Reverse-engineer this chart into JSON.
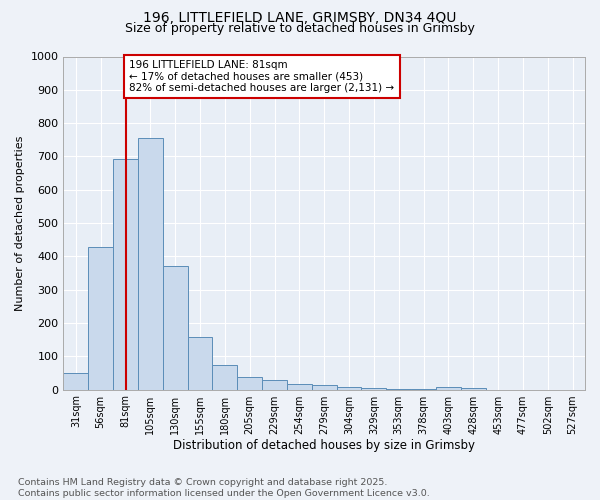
{
  "title_line1": "196, LITTLEFIELD LANE, GRIMSBY, DN34 4QU",
  "title_line2": "Size of property relative to detached houses in Grimsby",
  "xlabel": "Distribution of detached houses by size in Grimsby",
  "ylabel": "Number of detached properties",
  "categories": [
    "31sqm",
    "56sqm",
    "81sqm",
    "105sqm",
    "130sqm",
    "155sqm",
    "180sqm",
    "205sqm",
    "229sqm",
    "254sqm",
    "279sqm",
    "304sqm",
    "329sqm",
    "353sqm",
    "378sqm",
    "403sqm",
    "428sqm",
    "453sqm",
    "477sqm",
    "502sqm",
    "527sqm"
  ],
  "values": [
    50,
    428,
    693,
    755,
    370,
    157,
    73,
    38,
    28,
    18,
    13,
    8,
    4,
    2,
    1,
    8,
    5,
    0,
    0,
    0,
    0
  ],
  "bar_color": "#c9d9ec",
  "bar_edge_color": "#5b8db8",
  "vline_x_idx": 2,
  "vline_color": "#cc0000",
  "annotation_text": "196 LITTLEFIELD LANE: 81sqm\n← 17% of detached houses are smaller (453)\n82% of semi-detached houses are larger (2,131) →",
  "annotation_box_color": "#cc0000",
  "annotation_fontsize": 7.5,
  "ylim": [
    0,
    1000
  ],
  "yticks": [
    0,
    100,
    200,
    300,
    400,
    500,
    600,
    700,
    800,
    900,
    1000
  ],
  "background_color": "#eef2f8",
  "plot_bg_color": "#e8eef6",
  "grid_color": "#ffffff",
  "footnote": "Contains HM Land Registry data © Crown copyright and database right 2025.\nContains public sector information licensed under the Open Government Licence v3.0.",
  "footnote_fontsize": 6.8,
  "title1_fontsize": 10,
  "title2_fontsize": 9,
  "xlabel_fontsize": 8.5,
  "ylabel_fontsize": 8.0,
  "xtick_fontsize": 7.0,
  "ytick_fontsize": 8.0
}
